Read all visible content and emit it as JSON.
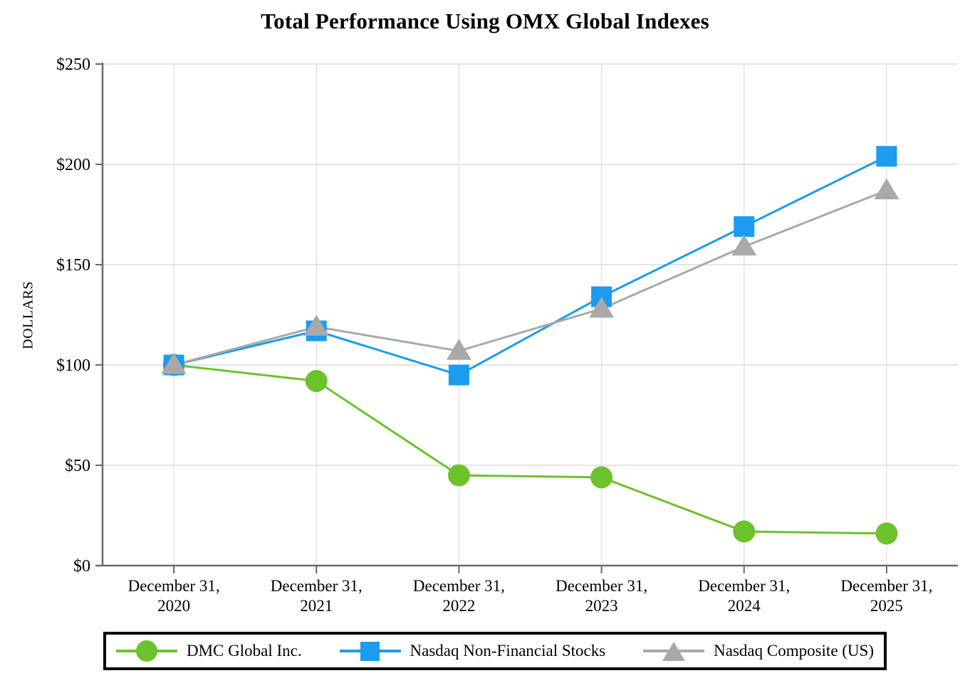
{
  "title": "Total Performance Using OMX Global Indexes",
  "y_axis": {
    "label": "DOLLARS",
    "ticks": [
      "$250",
      "$200",
      "$150",
      "$100",
      "$50",
      "$0"
    ],
    "tick_values": [
      250,
      200,
      150,
      100,
      50,
      0
    ]
  },
  "x_axis": {
    "categories_two_line": [
      [
        "December 31,",
        "2020"
      ],
      [
        "December 31,",
        "2021"
      ],
      [
        "December 31,",
        "2022"
      ],
      [
        "December 31,",
        "2023"
      ],
      [
        "December 31,",
        "2024"
      ],
      [
        "December 31,",
        "2025"
      ]
    ]
  },
  "chart_data": {
    "type": "line",
    "title": "Total Performance Using OMX Global Indexes",
    "xlabel": "",
    "ylabel": "DOLLARS",
    "ylim": [
      0,
      250
    ],
    "y_tick_step": 50,
    "grid": true,
    "legend_position": "bottom",
    "categories": [
      "December 31, 2020",
      "December 31, 2021",
      "December 31, 2022",
      "December 31, 2023",
      "December 31, 2024",
      "December 31, 2025"
    ],
    "series": [
      {
        "name": "DMC Global Inc.",
        "marker": "circle",
        "color": "#6CC22B",
        "values": [
          100,
          92,
          45,
          44,
          17,
          16
        ]
      },
      {
        "name": "Nasdaq Non-Financial Stocks",
        "marker": "square",
        "color": "#1B9CF0",
        "values": [
          100,
          117,
          95,
          134,
          169,
          204
        ]
      },
      {
        "name": "Nasdaq Composite (US)",
        "marker": "triangle",
        "color": "#A9A9A9",
        "values": [
          100,
          119,
          107,
          128,
          159,
          187
        ]
      }
    ],
    "style": {
      "axis_color": "#6A6A6A",
      "h_grid_color": "#DBDBDB",
      "v_grid_color": "#E5E5E5",
      "legend_border_color": "#000000"
    }
  }
}
